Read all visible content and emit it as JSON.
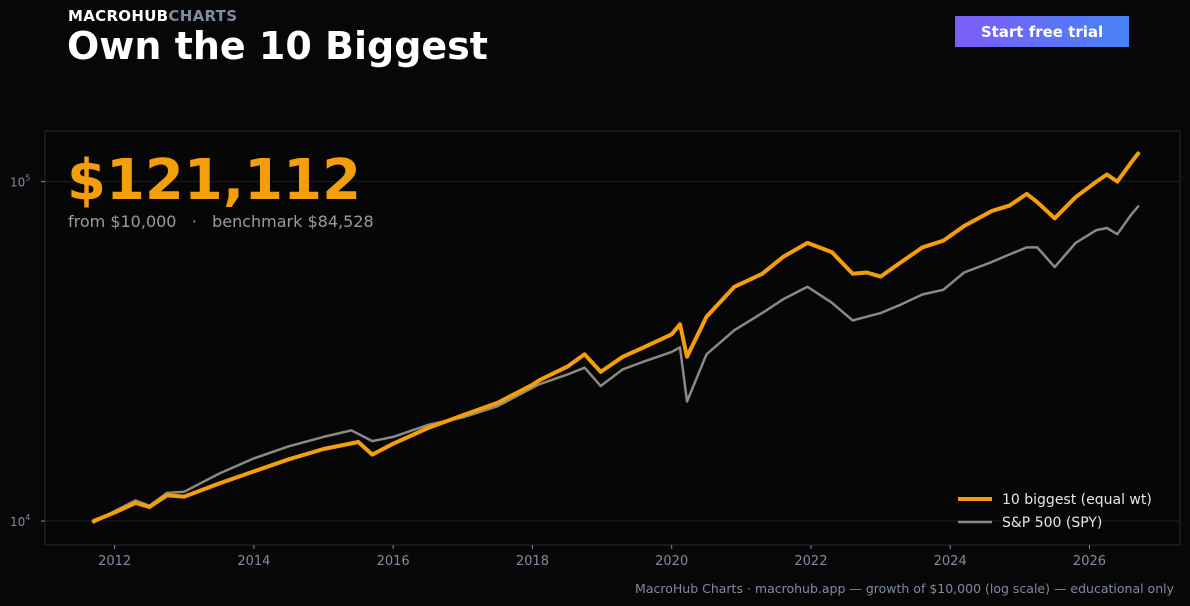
{
  "header": {
    "brand_primary": "MACROHUB",
    "brand_secondary": "CHARTS",
    "title": "Own the 10 Biggest",
    "cta_label": "Start free trial"
  },
  "headline": {
    "value": "$121,112",
    "subtitle": "from $10,000   ·   benchmark $84,528"
  },
  "footer_text": "MacroHub Charts · macrohub.app  —  growth of $10,000 (log scale) — educational only",
  "colors": {
    "background": "#070707",
    "accent": "#f59e0b",
    "benchmark": "#8a8a80",
    "axis_text": "#7f8aa3",
    "cta_start": "#7d5cf6",
    "cta_end": "#4683f4"
  },
  "chart_data": {
    "type": "line",
    "title": "",
    "xlabel": "",
    "ylabel": "",
    "y_scale": "log",
    "ylim": [
      8500,
      141000
    ],
    "xlim": [
      2011.0,
      2027.3
    ],
    "x_ticks": [
      "2012",
      "2014",
      "2016",
      "2018",
      "2020",
      "2022",
      "2024",
      "2026"
    ],
    "y_ticks": [
      {
        "base": "10",
        "exp": "4",
        "value": 10000
      },
      {
        "base": "10",
        "exp": "5",
        "value": 100000
      }
    ],
    "grid": "horizontal at major ticks",
    "legend_position": "bottom-right",
    "series": [
      {
        "name": "10 biggest (equal wt)",
        "color": "#f59e0b",
        "x": [
          2011.7,
          2012.0,
          2012.3,
          2012.5,
          2012.75,
          2013.0,
          2013.5,
          2014.0,
          2014.5,
          2015.0,
          2015.5,
          2015.7,
          2016.0,
          2016.5,
          2017.0,
          2017.5,
          2018.0,
          2018.1,
          2018.5,
          2018.75,
          2018.98,
          2019.3,
          2019.6,
          2020.0,
          2020.12,
          2020.22,
          2020.5,
          2020.9,
          2021.3,
          2021.6,
          2021.95,
          2022.3,
          2022.6,
          2022.8,
          2023.0,
          2023.3,
          2023.6,
          2023.9,
          2024.2,
          2024.6,
          2024.85,
          2025.1,
          2025.25,
          2025.5,
          2025.8,
          2026.1,
          2026.25,
          2026.4,
          2026.6,
          2026.7
        ],
        "y": [
          10000,
          10600,
          11300,
          11000,
          11900,
          11800,
          12900,
          14000,
          15200,
          16300,
          17100,
          15700,
          16900,
          18800,
          20500,
          22300,
          25200,
          26000,
          28500,
          31000,
          27500,
          30500,
          32500,
          35500,
          38000,
          30500,
          40000,
          49000,
          53500,
          60000,
          66000,
          62000,
          53500,
          54000,
          52500,
          58000,
          64000,
          67000,
          74000,
          82000,
          85000,
          92000,
          87000,
          78000,
          90000,
          100000,
          105000,
          100000,
          114000,
          121112
        ]
      },
      {
        "name": "S&P 500 (SPY)",
        "color": "#8a8a80",
        "x": [
          2011.7,
          2012.0,
          2012.3,
          2012.5,
          2012.75,
          2013.0,
          2013.5,
          2014.0,
          2014.5,
          2015.0,
          2015.4,
          2015.7,
          2016.0,
          2016.5,
          2017.0,
          2017.5,
          2018.0,
          2018.1,
          2018.5,
          2018.75,
          2018.98,
          2019.3,
          2019.6,
          2020.0,
          2020.12,
          2020.22,
          2020.5,
          2020.9,
          2021.3,
          2021.6,
          2021.95,
          2022.3,
          2022.6,
          2022.8,
          2023.0,
          2023.3,
          2023.6,
          2023.9,
          2024.2,
          2024.6,
          2024.85,
          2025.1,
          2025.25,
          2025.5,
          2025.8,
          2026.1,
          2026.25,
          2026.4,
          2026.6,
          2026.7
        ],
        "y": [
          9900,
          10700,
          11500,
          11100,
          12100,
          12200,
          13800,
          15300,
          16600,
          17700,
          18500,
          17200,
          17700,
          19200,
          20200,
          21800,
          24700,
          25300,
          27000,
          28300,
          25000,
          28000,
          29500,
          31500,
          32500,
          22500,
          31000,
          36500,
          41000,
          45000,
          49000,
          44000,
          39000,
          40000,
          41000,
          43500,
          46500,
          48000,
          54000,
          58000,
          61000,
          64000,
          64000,
          56000,
          66000,
          72000,
          73000,
          70000,
          80000,
          84528
        ]
      }
    ]
  }
}
